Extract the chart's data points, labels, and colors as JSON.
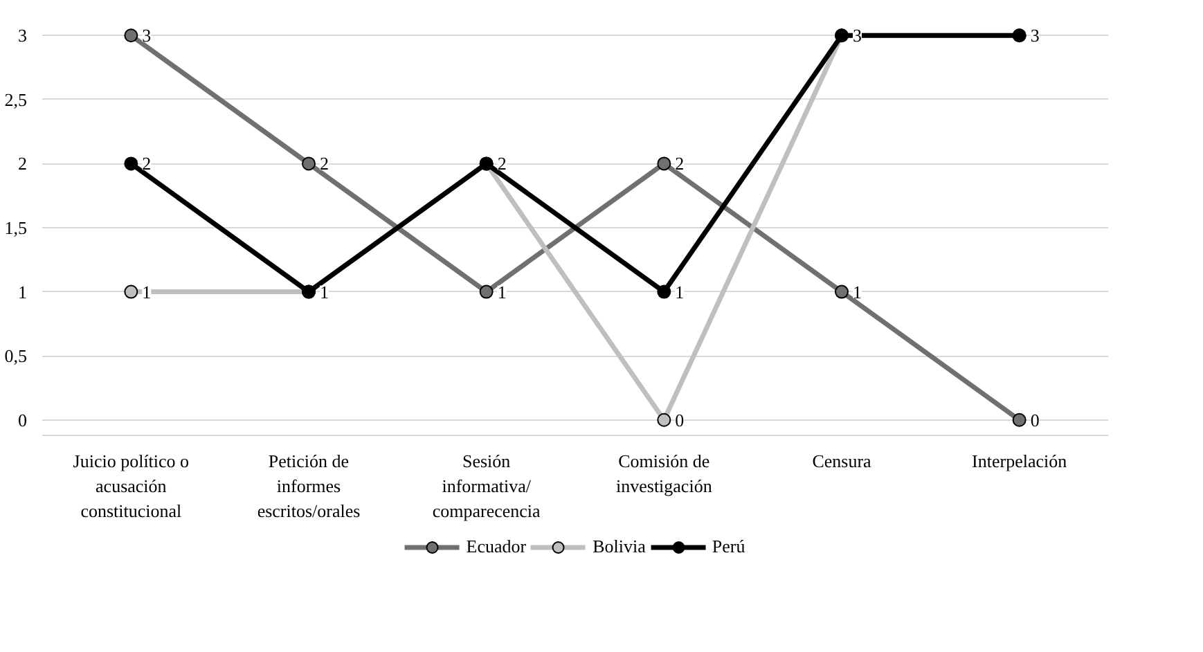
{
  "chart_data": {
    "type": "line",
    "categories": [
      "Juicio político o acusación constitucional",
      "Petición de informes escritos/orales",
      "Sesión informativa/ comparecencia",
      "Comisión de investigación",
      "Censura",
      "Interpelación"
    ],
    "series": [
      {
        "name": "Ecuador",
        "color": "#707070",
        "values": [
          3,
          2,
          1,
          2,
          1,
          0
        ],
        "value_labels": [
          "3",
          "2",
          "1",
          "2",
          "1",
          "0"
        ]
      },
      {
        "name": "Bolivia",
        "color": "#bfbfbf",
        "values": [
          1,
          1,
          2,
          0,
          3,
          3
        ],
        "value_labels": [
          "1",
          "1",
          "2",
          "0",
          "3",
          "3"
        ]
      },
      {
        "name": "Perú",
        "color": "#000000",
        "values": [
          2,
          1,
          2,
          1,
          3,
          3
        ],
        "value_labels": [
          "2",
          null,
          null,
          "1",
          null,
          null
        ]
      }
    ],
    "ylim": [
      0,
      3
    ],
    "yticks": [
      0,
      {
        "value": 0.5,
        "label": "0,5"
      },
      1,
      {
        "value": 1.5,
        "label": "1,5"
      },
      2,
      {
        "value": 2.5,
        "label": "2,5"
      },
      3
    ],
    "grid": "y",
    "legend": "bottom",
    "marker": "circle",
    "line_style": "solid",
    "data_labels": true
  }
}
